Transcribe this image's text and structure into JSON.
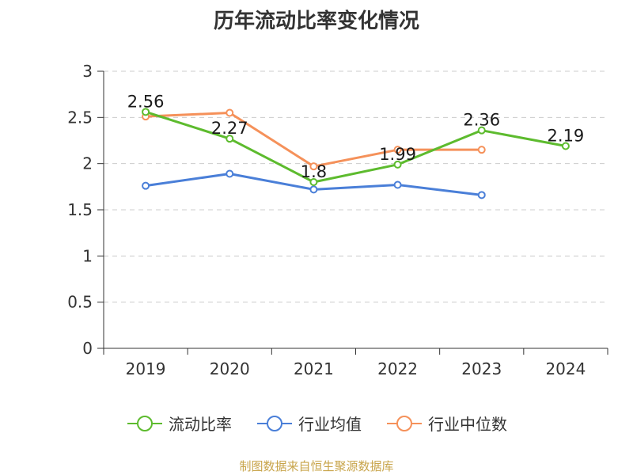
{
  "title": "历年流动比率变化情况",
  "source": "制图数据来自恒生聚源数据库",
  "chart_data": {
    "type": "line",
    "title": "历年流动比率变化情况",
    "categories": [
      "2019",
      "2020",
      "2021",
      "2022",
      "2023",
      "2024"
    ],
    "ylim": [
      0,
      3
    ],
    "yticks": [
      "0",
      "0.5",
      "1",
      "1.5",
      "2",
      "2.5",
      "3"
    ],
    "grid": true,
    "legend_position": "bottom",
    "series": [
      {
        "name": "流动比率",
        "color": "#5dbb2e",
        "values": [
          2.56,
          2.27,
          1.8,
          1.99,
          2.36,
          2.19
        ],
        "labels": [
          "2.56",
          "2.27",
          "1.8",
          "1.99",
          "2.36",
          "2.19"
        ]
      },
      {
        "name": "行业均值",
        "color": "#4a7fd8",
        "values": [
          1.76,
          1.89,
          1.72,
          1.77,
          1.66,
          null
        ]
      },
      {
        "name": "行业中位数",
        "color": "#f5915a",
        "values": [
          2.51,
          2.55,
          1.97,
          2.15,
          2.15,
          null
        ]
      }
    ]
  }
}
